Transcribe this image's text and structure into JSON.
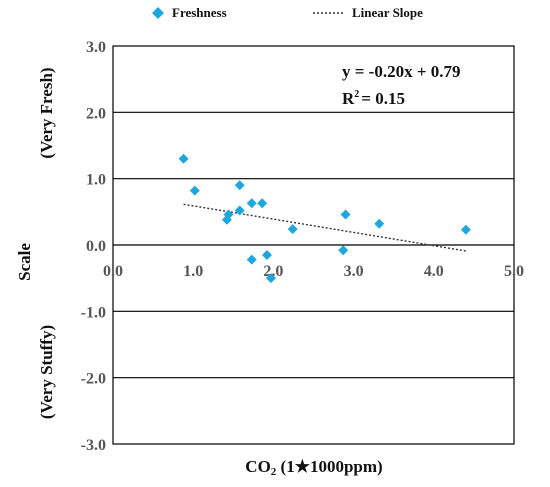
{
  "chart_data": {
    "type": "scatter",
    "xlabel_main": "CO",
    "xlabel_sub": "2",
    "xlabel_rest": " (1★1000ppm)",
    "ylabel": "Scale",
    "ylabel_top": "(Very Fresh)",
    "ylabel_bottom": "(Very Stuffy)",
    "xlim": [
      0,
      5
    ],
    "ylim": [
      -3,
      3
    ],
    "x_ticks": [
      "0.0",
      "1.0",
      "2.0",
      "3.0",
      "4.0",
      "5.0"
    ],
    "y_ticks": [
      "3.0",
      "2.0",
      "1.0",
      "0.0",
      "-1.0",
      "-2.0",
      "-3.0"
    ],
    "grid": "horizontal",
    "legend_position": "top",
    "legend": [
      {
        "label": "Freshness",
        "marker": "diamond",
        "color": "#1ea7df"
      },
      {
        "label": "Linear Slope",
        "marker": "dotted-line",
        "color": "#333333"
      }
    ],
    "annotation": {
      "equation": "y = -0.20x + 0.79",
      "r2_prefix": "R",
      "r2_sup": "2",
      "r2_value": "= 0.15"
    },
    "series": [
      {
        "name": "Freshness",
        "color": "#1ea7df",
        "points": [
          {
            "x": 0.88,
            "y": 1.3
          },
          {
            "x": 1.02,
            "y": 0.82
          },
          {
            "x": 1.42,
            "y": 0.38
          },
          {
            "x": 1.44,
            "y": 0.46
          },
          {
            "x": 1.58,
            "y": 0.9
          },
          {
            "x": 1.58,
            "y": 0.52
          },
          {
            "x": 1.73,
            "y": 0.63
          },
          {
            "x": 1.73,
            "y": -0.22
          },
          {
            "x": 1.86,
            "y": 0.63
          },
          {
            "x": 1.92,
            "y": -0.15
          },
          {
            "x": 1.97,
            "y": -0.5
          },
          {
            "x": 2.24,
            "y": 0.24
          },
          {
            "x": 2.87,
            "y": -0.08
          },
          {
            "x": 2.9,
            "y": 0.46
          },
          {
            "x": 3.32,
            "y": 0.32
          },
          {
            "x": 4.4,
            "y": 0.23
          }
        ]
      }
    ],
    "trendline": {
      "slope": -0.2,
      "intercept": 0.79,
      "x_range": [
        0.88,
        4.4
      ]
    }
  }
}
